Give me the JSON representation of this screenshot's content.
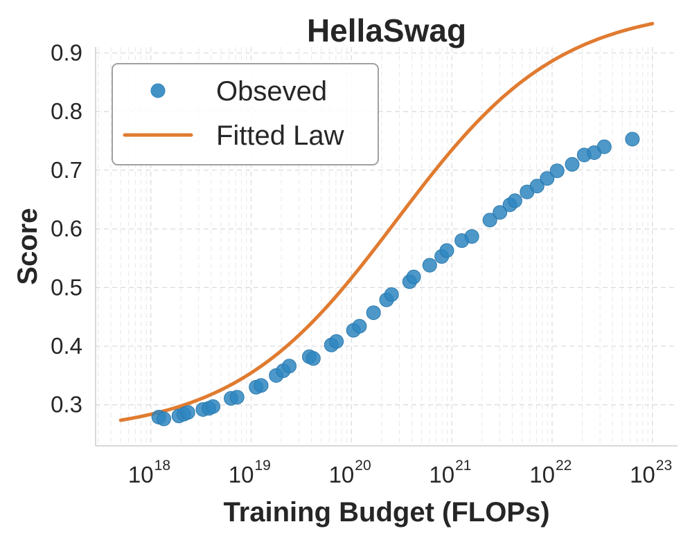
{
  "chart_data": {
    "type": "scatter",
    "title": "HellaSwag",
    "xlabel": "Training Budget (FLOPs)",
    "ylabel": "Score",
    "xscale": "log",
    "xlim_log10": [
      17.45,
      23.25
    ],
    "ylim": [
      0.23,
      0.91
    ],
    "grid": true,
    "legend_position": "top-left",
    "x_ticks": [
      {
        "base": "10",
        "exp": "18",
        "log10": 18
      },
      {
        "base": "10",
        "exp": "19",
        "log10": 19
      },
      {
        "base": "10",
        "exp": "20",
        "log10": 20
      },
      {
        "base": "10",
        "exp": "21",
        "log10": 21
      },
      {
        "base": "10",
        "exp": "22",
        "log10": 22
      },
      {
        "base": "10",
        "exp": "23",
        "log10": 23
      }
    ],
    "y_ticks": [
      "0.3",
      "0.4",
      "0.5",
      "0.6",
      "0.7",
      "0.8",
      "0.9"
    ],
    "series": [
      {
        "name": "Obseved",
        "kind": "scatter",
        "color": "#2f86c0",
        "points": [
          [
            18.08,
            0.279
          ],
          [
            18.13,
            0.276
          ],
          [
            18.28,
            0.281
          ],
          [
            18.33,
            0.284
          ],
          [
            18.37,
            0.287
          ],
          [
            18.52,
            0.292
          ],
          [
            18.58,
            0.294
          ],
          [
            18.62,
            0.297
          ],
          [
            18.8,
            0.311
          ],
          [
            18.86,
            0.313
          ],
          [
            19.05,
            0.33
          ],
          [
            19.1,
            0.333
          ],
          [
            19.25,
            0.35
          ],
          [
            19.32,
            0.358
          ],
          [
            19.38,
            0.366
          ],
          [
            19.58,
            0.382
          ],
          [
            19.62,
            0.379
          ],
          [
            19.8,
            0.402
          ],
          [
            19.85,
            0.408
          ],
          [
            20.02,
            0.427
          ],
          [
            20.08,
            0.434
          ],
          [
            20.22,
            0.457
          ],
          [
            20.35,
            0.479
          ],
          [
            20.4,
            0.488
          ],
          [
            20.58,
            0.51
          ],
          [
            20.62,
            0.518
          ],
          [
            20.78,
            0.538
          ],
          [
            20.9,
            0.553
          ],
          [
            20.95,
            0.563
          ],
          [
            21.1,
            0.58
          ],
          [
            21.2,
            0.587
          ],
          [
            21.38,
            0.615
          ],
          [
            21.48,
            0.628
          ],
          [
            21.58,
            0.641
          ],
          [
            21.63,
            0.648
          ],
          [
            21.75,
            0.663
          ],
          [
            21.85,
            0.673
          ],
          [
            21.95,
            0.686
          ],
          [
            22.05,
            0.699
          ],
          [
            22.2,
            0.71
          ],
          [
            22.32,
            0.726
          ],
          [
            22.42,
            0.73
          ],
          [
            22.52,
            0.74
          ],
          [
            22.8,
            0.753
          ]
        ]
      },
      {
        "name": "Fitted Law",
        "kind": "line",
        "color": "#e07b30",
        "curve": {
          "log10_min": 17.7,
          "log10_max": 23.0,
          "floor": 0.25,
          "ceiling": 0.98,
          "center": 20.45,
          "slope": 1.235
        }
      }
    ]
  }
}
